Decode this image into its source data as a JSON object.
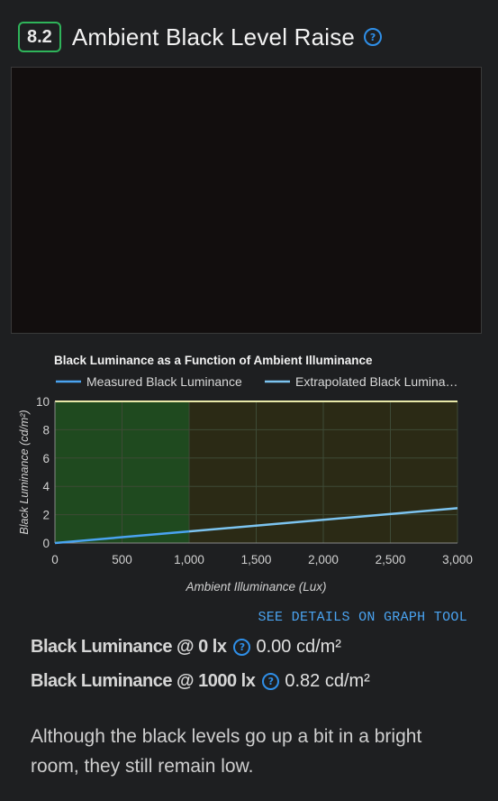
{
  "header": {
    "score": "8.2",
    "title": "Ambient Black Level Raise",
    "help": "?"
  },
  "chart_data": {
    "type": "line",
    "title": "Black Luminance as a Function of Ambient Illuminance",
    "xlabel": "Ambient Illuminance (Lux)",
    "ylabel": "Black Luminance (cd/m²)",
    "xlim": [
      0,
      3000
    ],
    "ylim": [
      0,
      10
    ],
    "x_ticks": [
      "0",
      "500",
      "1,000",
      "1,500",
      "2,000",
      "2,500",
      "3,000"
    ],
    "y_ticks": [
      "0",
      "2",
      "4",
      "6",
      "8",
      "10"
    ],
    "grid": true,
    "legend": "top",
    "bands": [
      {
        "from": 0,
        "to": 1000,
        "color": "#1f4a1f"
      },
      {
        "from": 1000,
        "to": 3000,
        "color": "#2b2a15"
      }
    ],
    "threshold_line": {
      "y": 10,
      "color": "#e8e8a8"
    },
    "series": [
      {
        "name": "Measured Black Luminance",
        "color": "#4aa3f0",
        "x": [
          0,
          1000
        ],
        "y": [
          0,
          0.82
        ]
      },
      {
        "name": "Extrapolated Black Lumina…",
        "color": "#7cc4f0",
        "x": [
          1000,
          3000
        ],
        "y": [
          0.82,
          2.46
        ]
      }
    ]
  },
  "links": {
    "see_details": "SEE DETAILS ON GRAPH TOOL"
  },
  "stats": [
    {
      "label": "Black Luminance @ 0 lx",
      "help": "?",
      "value": "0.00 cd/m²"
    },
    {
      "label": "Black Luminance @ 1000 lx",
      "help": "?",
      "value": "0.82 cd/m²"
    }
  ],
  "description": "Although the black levels go up a bit in a bright room, they still remain low."
}
